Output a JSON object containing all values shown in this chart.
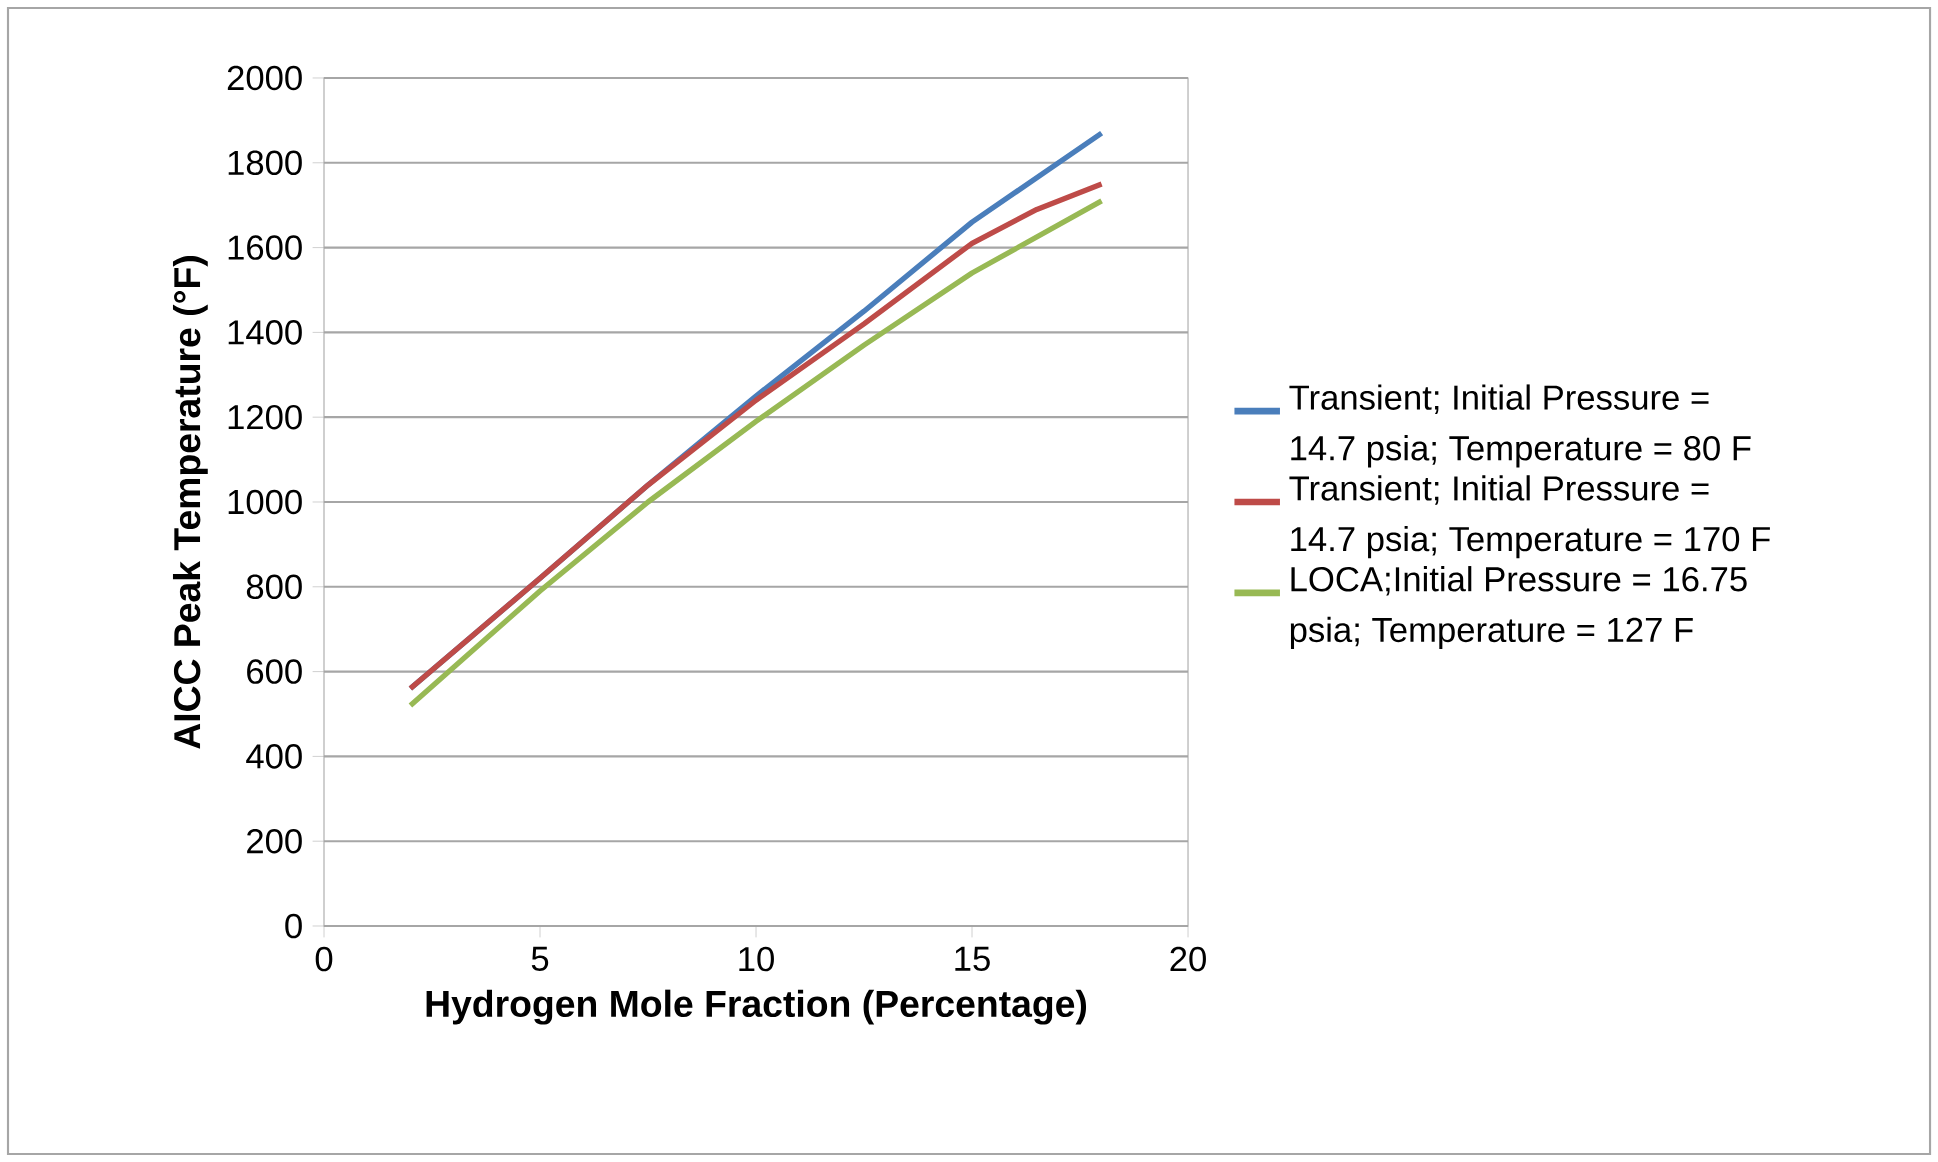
{
  "chart_data": {
    "type": "line",
    "xlabel": "Hydrogen Mole Fraction (Percentage)",
    "ylabel": "AICC Peak Temperature (°F)",
    "xlim": [
      0,
      20
    ],
    "xticks": [
      0,
      5,
      10,
      15,
      20
    ],
    "ylim": [
      0,
      2000
    ],
    "yticks": [
      0,
      200,
      400,
      600,
      800,
      1000,
      1200,
      1400,
      1600,
      1800,
      2000
    ],
    "grid": "y",
    "legend": "right",
    "marker": "none",
    "line_style": "solid",
    "series": [
      {
        "name": "Transient; Initial Pressure = 14.7 psia; Temperature = 80 F",
        "color": "#4a7ebb",
        "x": [
          2,
          5,
          7.5,
          10,
          12.5,
          15,
          18
        ],
        "values": [
          560,
          820,
          1040,
          1250,
          1450,
          1660,
          1870
        ]
      },
      {
        "name": "Transient; Initial Pressure = 14.7 psia; Temperature = 170  F",
        "color": "#be4b48",
        "x": [
          2,
          5,
          7.5,
          10,
          12.5,
          15,
          16.5,
          18
        ],
        "values": [
          560,
          820,
          1040,
          1240,
          1420,
          1610,
          1690,
          1750
        ]
      },
      {
        "name": "LOCA;Initial Pressure = 16.75 psia; Temperature = 127 F",
        "color": "#98b954",
        "x": [
          2,
          5,
          7.5,
          10,
          12.5,
          15,
          18
        ],
        "values": [
          520,
          790,
          1000,
          1190,
          1370,
          1540,
          1710
        ]
      }
    ]
  }
}
